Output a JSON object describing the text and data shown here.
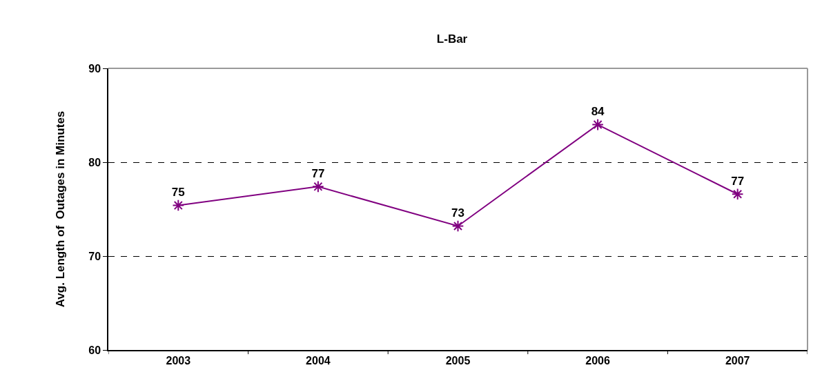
{
  "chart_data": {
    "type": "line",
    "title": "L-Bar",
    "ylabel": "Avg. Length of  Outages in Minutes",
    "categories": [
      "2003",
      "2004",
      "2005",
      "2006",
      "2007"
    ],
    "series": [
      {
        "color": "#800080",
        "values": [
          75.4,
          77.4,
          73.2,
          84,
          76.6
        ],
        "value_labels": [
          "75",
          "77",
          "73",
          "84",
          "77"
        ]
      }
    ],
    "ylim": [
      60,
      90
    ],
    "yticks": [
      60,
      70,
      80,
      90
    ],
    "grid": "y",
    "marker": "cross",
    "line_style": "solid"
  }
}
